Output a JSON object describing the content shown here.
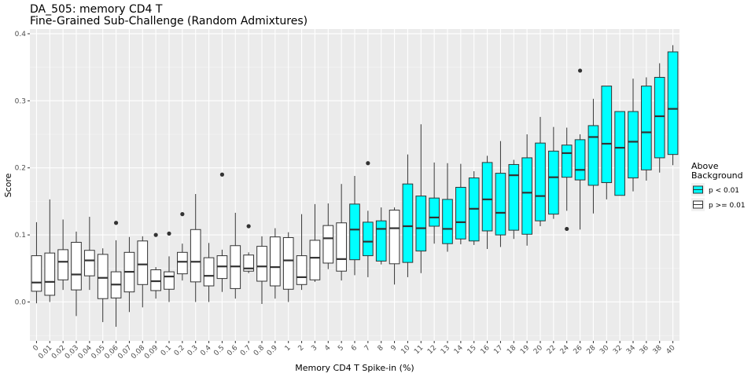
{
  "chart_data": {
    "type": "boxplot",
    "title": "DA_505: memory CD4 T",
    "subtitle": "Fine-Grained Sub-Challenge (Random Admixtures)",
    "xlabel": "Memory CD4 T Spike-in (%)",
    "ylabel": "Score",
    "ylim": [
      -0.058,
      0.407
    ],
    "yticks": [
      0.0,
      0.1,
      0.2,
      0.3,
      0.4
    ],
    "ytick_labels": [
      "0.0",
      "0.1",
      "0.2",
      "0.3",
      "0.4"
    ],
    "grid": true,
    "legend": {
      "title_line1": "Above",
      "title_line2": "Background",
      "placement": "right",
      "items": [
        {
          "label": "p < 0.01",
          "color": "#00ffff"
        },
        {
          "label": "p >= 0.01",
          "color": "#ffffff"
        }
      ]
    },
    "colors": {
      "panel": "#ebebeb",
      "grid": "#ffffff",
      "box_stroke": "#333333",
      "outlier": "#333333"
    },
    "categories": [
      "0",
      "0.01",
      "0.02",
      "0.03",
      "0.04",
      "0.05",
      "0.06",
      "0.07",
      "0.08",
      "0.09",
      "0.1",
      "0.2",
      "0.3",
      "0.4",
      "0.5",
      "0.6",
      "0.7",
      "0.8",
      "0.9",
      "1",
      "2",
      "3",
      "4",
      "5",
      "6",
      "7",
      "8",
      "9",
      "10",
      "11",
      "12",
      "13",
      "14",
      "15",
      "16",
      "17",
      "18",
      "19",
      "20",
      "22",
      "24",
      "26",
      "28",
      "30",
      "32",
      "34",
      "36",
      "38",
      "40"
    ],
    "boxes": [
      {
        "min": -0.002,
        "q1": 0.016,
        "median": 0.029,
        "q3": 0.069,
        "max": 0.119,
        "above": false,
        "outliers": []
      },
      {
        "min": 0.0,
        "q1": 0.01,
        "median": 0.03,
        "q3": 0.073,
        "max": 0.153,
        "above": false,
        "outliers": []
      },
      {
        "min": 0.018,
        "q1": 0.033,
        "median": 0.06,
        "q3": 0.078,
        "max": 0.123,
        "above": false,
        "outliers": []
      },
      {
        "min": -0.021,
        "q1": 0.018,
        "median": 0.041,
        "q3": 0.089,
        "max": 0.105,
        "above": false,
        "outliers": []
      },
      {
        "min": 0.018,
        "q1": 0.039,
        "median": 0.062,
        "q3": 0.077,
        "max": 0.127,
        "above": false,
        "outliers": []
      },
      {
        "min": -0.03,
        "q1": 0.005,
        "median": 0.036,
        "q3": 0.071,
        "max": 0.08,
        "above": false,
        "outliers": []
      },
      {
        "min": -0.037,
        "q1": 0.006,
        "median": 0.026,
        "q3": 0.045,
        "max": 0.092,
        "above": false,
        "outliers": [
          0.118
        ]
      },
      {
        "min": -0.015,
        "q1": 0.015,
        "median": 0.045,
        "q3": 0.074,
        "max": 0.097,
        "above": false,
        "outliers": []
      },
      {
        "min": -0.008,
        "q1": 0.026,
        "median": 0.056,
        "q3": 0.091,
        "max": 0.098,
        "above": false,
        "outliers": []
      },
      {
        "min": 0.005,
        "q1": 0.017,
        "median": 0.031,
        "q3": 0.048,
        "max": 0.052,
        "above": false,
        "outliers": [
          0.1
        ]
      },
      {
        "min": 0.0,
        "q1": 0.019,
        "median": 0.038,
        "q3": 0.045,
        "max": 0.068,
        "above": false,
        "outliers": [
          0.102
        ]
      },
      {
        "min": 0.032,
        "q1": 0.042,
        "median": 0.06,
        "q3": 0.074,
        "max": 0.087,
        "above": false,
        "outliers": [
          0.131
        ]
      },
      {
        "min": 0.0,
        "q1": 0.03,
        "median": 0.06,
        "q3": 0.108,
        "max": 0.161,
        "above": false,
        "outliers": []
      },
      {
        "min": 0.0,
        "q1": 0.024,
        "median": 0.039,
        "q3": 0.066,
        "max": 0.088,
        "above": false,
        "outliers": []
      },
      {
        "min": 0.015,
        "q1": 0.035,
        "median": 0.053,
        "q3": 0.069,
        "max": 0.078,
        "above": false,
        "outliers": [
          0.19
        ]
      },
      {
        "min": 0.005,
        "q1": 0.02,
        "median": 0.053,
        "q3": 0.084,
        "max": 0.133,
        "above": false,
        "outliers": []
      },
      {
        "min": 0.043,
        "q1": 0.046,
        "median": 0.05,
        "q3": 0.07,
        "max": 0.074,
        "above": false,
        "outliers": [
          0.113
        ]
      },
      {
        "min": -0.003,
        "q1": 0.031,
        "median": 0.053,
        "q3": 0.083,
        "max": 0.098,
        "above": false,
        "outliers": []
      },
      {
        "min": 0.005,
        "q1": 0.024,
        "median": 0.052,
        "q3": 0.097,
        "max": 0.11,
        "above": false,
        "outliers": []
      },
      {
        "min": 0.0,
        "q1": 0.019,
        "median": 0.062,
        "q3": 0.096,
        "max": 0.104,
        "above": false,
        "outliers": []
      },
      {
        "min": 0.018,
        "q1": 0.026,
        "median": 0.037,
        "q3": 0.069,
        "max": 0.131,
        "above": false,
        "outliers": []
      },
      {
        "min": 0.03,
        "q1": 0.033,
        "median": 0.066,
        "q3": 0.092,
        "max": 0.146,
        "above": false,
        "outliers": []
      },
      {
        "min": 0.049,
        "q1": 0.058,
        "median": 0.095,
        "q3": 0.114,
        "max": 0.147,
        "above": false,
        "outliers": []
      },
      {
        "min": 0.032,
        "q1": 0.046,
        "median": 0.064,
        "q3": 0.118,
        "max": 0.176,
        "above": false,
        "outliers": []
      },
      {
        "min": 0.04,
        "q1": 0.063,
        "median": 0.108,
        "q3": 0.146,
        "max": 0.188,
        "above": true,
        "outliers": []
      },
      {
        "min": 0.037,
        "q1": 0.069,
        "median": 0.09,
        "q3": 0.119,
        "max": 0.136,
        "above": true,
        "outliers": [
          0.207
        ]
      },
      {
        "min": 0.056,
        "q1": 0.061,
        "median": 0.109,
        "q3": 0.121,
        "max": 0.141,
        "above": true,
        "outliers": []
      },
      {
        "min": 0.026,
        "q1": 0.057,
        "median": 0.11,
        "q3": 0.137,
        "max": 0.141,
        "above": false,
        "outliers": []
      },
      {
        "min": 0.037,
        "q1": 0.059,
        "median": 0.113,
        "q3": 0.176,
        "max": 0.22,
        "above": true,
        "outliers": []
      },
      {
        "min": 0.043,
        "q1": 0.076,
        "median": 0.11,
        "q3": 0.158,
        "max": 0.265,
        "above": true,
        "outliers": []
      },
      {
        "min": 0.087,
        "q1": 0.113,
        "median": 0.126,
        "q3": 0.155,
        "max": 0.208,
        "above": true,
        "outliers": []
      },
      {
        "min": 0.075,
        "q1": 0.087,
        "median": 0.109,
        "q3": 0.153,
        "max": 0.207,
        "above": true,
        "outliers": []
      },
      {
        "min": 0.086,
        "q1": 0.094,
        "median": 0.119,
        "q3": 0.171,
        "max": 0.206,
        "above": true,
        "outliers": []
      },
      {
        "min": 0.085,
        "q1": 0.091,
        "median": 0.139,
        "q3": 0.185,
        "max": 0.195,
        "above": true,
        "outliers": []
      },
      {
        "min": 0.079,
        "q1": 0.106,
        "median": 0.153,
        "q3": 0.208,
        "max": 0.218,
        "above": true,
        "outliers": []
      },
      {
        "min": 0.082,
        "q1": 0.1,
        "median": 0.133,
        "q3": 0.192,
        "max": 0.24,
        "above": true,
        "outliers": []
      },
      {
        "min": 0.094,
        "q1": 0.107,
        "median": 0.189,
        "q3": 0.205,
        "max": 0.212,
        "above": true,
        "outliers": []
      },
      {
        "min": 0.084,
        "q1": 0.101,
        "median": 0.163,
        "q3": 0.215,
        "max": 0.25,
        "above": true,
        "outliers": []
      },
      {
        "min": 0.113,
        "q1": 0.121,
        "median": 0.158,
        "q3": 0.237,
        "max": 0.276,
        "above": true,
        "outliers": []
      },
      {
        "min": 0.124,
        "q1": 0.131,
        "median": 0.186,
        "q3": 0.225,
        "max": 0.261,
        "above": true,
        "outliers": []
      },
      {
        "min": 0.136,
        "q1": 0.186,
        "median": 0.222,
        "q3": 0.234,
        "max": 0.26,
        "above": true,
        "outliers": [
          0.109
        ]
      },
      {
        "min": 0.108,
        "q1": 0.182,
        "median": 0.197,
        "q3": 0.242,
        "max": 0.25,
        "above": true,
        "outliers": [
          0.345
        ]
      },
      {
        "min": 0.132,
        "q1": 0.174,
        "median": 0.246,
        "q3": 0.263,
        "max": 0.303,
        "above": true,
        "outliers": []
      },
      {
        "min": 0.153,
        "q1": 0.178,
        "median": 0.236,
        "q3": 0.322,
        "max": 0.322,
        "above": true,
        "outliers": []
      },
      {
        "min": 0.159,
        "q1": 0.159,
        "median": 0.23,
        "q3": 0.284,
        "max": 0.284,
        "above": true,
        "outliers": []
      },
      {
        "min": 0.165,
        "q1": 0.185,
        "median": 0.239,
        "q3": 0.284,
        "max": 0.333,
        "above": true,
        "outliers": []
      },
      {
        "min": 0.181,
        "q1": 0.197,
        "median": 0.253,
        "q3": 0.322,
        "max": 0.335,
        "above": true,
        "outliers": []
      },
      {
        "min": 0.193,
        "q1": 0.215,
        "median": 0.277,
        "q3": 0.335,
        "max": 0.356,
        "above": true,
        "outliers": []
      },
      {
        "min": 0.204,
        "q1": 0.22,
        "median": 0.288,
        "q3": 0.373,
        "max": 0.383,
        "above": true,
        "outliers": []
      }
    ]
  }
}
